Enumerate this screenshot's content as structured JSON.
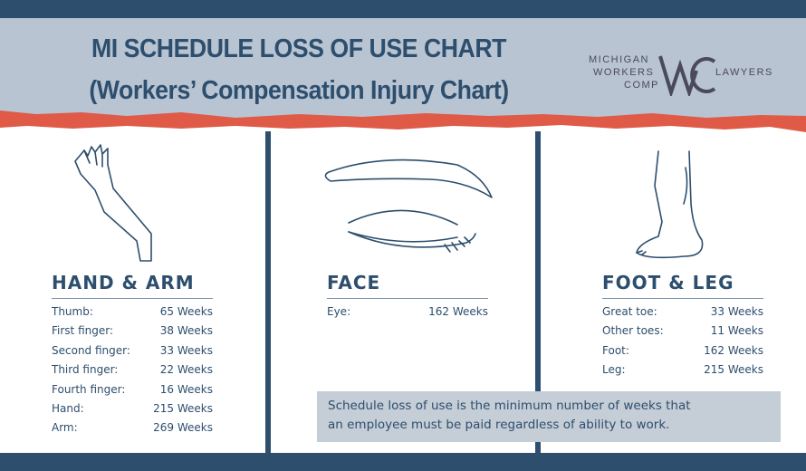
{
  "header": {
    "title_line1": "MI SCHEDULE LOSS OF USE CHART",
    "title_line2": "(Workers’ Compensation Injury Chart)",
    "logo": {
      "left_words": [
        "MICHIGAN",
        "WORKERS",
        "COMP"
      ],
      "mark": "WC",
      "right_word": "LAWYERS"
    }
  },
  "colors": {
    "navy": "#2d4e6d",
    "header_gray": "#b8c4d2",
    "accent_red": "#e05a48",
    "note_bg": "#c5cdd7"
  },
  "sections": [
    {
      "title": "HAND & ARM",
      "icon": "arm-icon",
      "rows": [
        {
          "label": "Thumb:",
          "value": "65 Weeks"
        },
        {
          "label": "First finger:",
          "value": "38 Weeks"
        },
        {
          "label": "Second finger:",
          "value": "33 Weeks"
        },
        {
          "label": "Third finger:",
          "value": "22 Weeks"
        },
        {
          "label": "Fourth finger:",
          "value": "16 Weeks"
        },
        {
          "label": "Hand:",
          "value": "215 Weeks"
        },
        {
          "label": "Arm:",
          "value": "269 Weeks"
        }
      ]
    },
    {
      "title": "FACE",
      "icon": "eye-icon",
      "rows": [
        {
          "label": "Eye:",
          "value": "162 Weeks"
        }
      ]
    },
    {
      "title": "FOOT & LEG",
      "icon": "leg-icon",
      "rows": [
        {
          "label": "Great toe:",
          "value": "33 Weeks"
        },
        {
          "label": "Other toes:",
          "value": "11 Weeks"
        },
        {
          "label": "Foot:",
          "value": "162 Weeks"
        },
        {
          "label": "Leg:",
          "value": "215 Weeks"
        }
      ]
    }
  ],
  "note": {
    "line1": "Schedule loss of use is the minimum number of weeks that",
    "line2": "an employee must be paid regardless of ability to work."
  }
}
